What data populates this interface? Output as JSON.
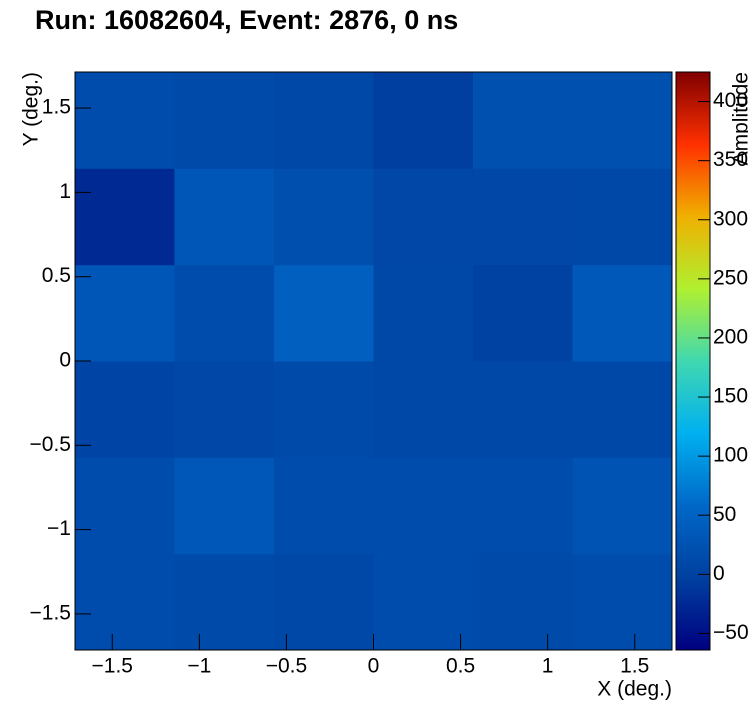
{
  "chart_data": {
    "type": "heatmap",
    "title": "Run: 16082604, Event: 2876, 0 ns",
    "x_label": "X (deg.)",
    "y_label": "Y (deg.)",
    "z_label": "Amplitude",
    "xbins": [
      -1.714,
      -1.143,
      -0.571,
      0,
      0.571,
      1.143,
      1.714
    ],
    "ybins": [
      -1.714,
      -1.143,
      -0.571,
      0,
      0.571,
      1.143,
      1.714
    ],
    "z": [
      [
        15,
        13,
        10,
        15,
        12,
        15
      ],
      [
        16,
        32,
        15,
        15,
        15,
        26
      ],
      [
        5,
        8,
        12,
        10,
        10,
        10
      ],
      [
        30,
        15,
        45,
        10,
        0,
        35
      ],
      [
        -25,
        30,
        18,
        8,
        8,
        10
      ],
      [
        15,
        12,
        10,
        -5,
        22,
        22
      ]
    ],
    "xlim": [
      -1.714,
      1.714
    ],
    "ylim": [
      -1.714,
      1.714
    ],
    "zlim": [
      -64,
      425
    ],
    "xticks": [
      {
        "value": -1.5,
        "label": "−1.5"
      },
      {
        "value": -1,
        "label": "−1"
      },
      {
        "value": -0.5,
        "label": "−0.5"
      },
      0,
      0.5,
      1,
      1.5
    ],
    "yticks": [
      {
        "value": -1.5,
        "label": "−1.5"
      },
      {
        "value": -1,
        "label": "−1"
      },
      {
        "value": -0.5,
        "label": "−0.5"
      },
      0,
      0.5,
      1,
      1.5
    ],
    "zticks": [
      {
        "value": -50,
        "label": "−50"
      },
      0,
      50,
      100,
      150,
      200,
      250,
      300,
      350,
      400
    ],
    "colorscale": [
      "#000080",
      "#0040a0",
      "#0068c8",
      "#00b0f0",
      "#40d8b0",
      "#b0f030",
      "#f0b000",
      "#ff3000",
      "#800000"
    ]
  }
}
